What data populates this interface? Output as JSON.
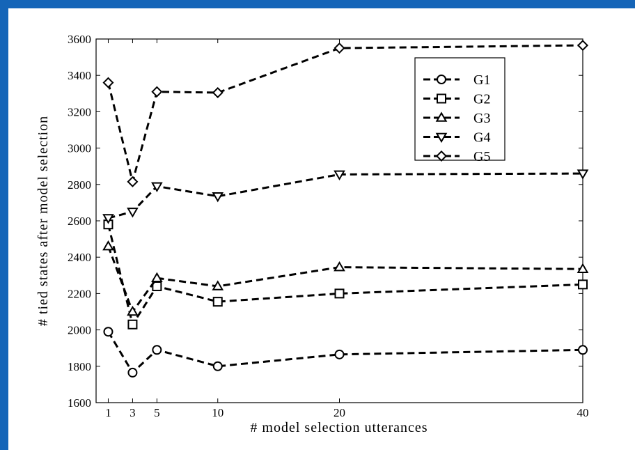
{
  "colors": {
    "border": "#1565b8",
    "background": "#ffffff",
    "ink": "#000000"
  },
  "chart_data": {
    "type": "line",
    "title": "",
    "xlabel": "# model selection utterances",
    "ylabel": "# tied states after model selection",
    "x": [
      1,
      3,
      5,
      10,
      20,
      40
    ],
    "xticks": [
      1,
      3,
      5,
      10,
      20,
      40
    ],
    "xlim": [
      0,
      40
    ],
    "ylim": [
      1600,
      3600
    ],
    "yticks": [
      1600,
      1800,
      2000,
      2200,
      2400,
      2600,
      2800,
      3000,
      3200,
      3400,
      3600
    ],
    "grid": false,
    "legend_position": "top-right",
    "series": [
      {
        "name": "G1",
        "marker": "circle",
        "values": [
          1990,
          1765,
          1890,
          1800,
          1865,
          1890
        ]
      },
      {
        "name": "G2",
        "marker": "square",
        "values": [
          2580,
          2030,
          2240,
          2155,
          2200,
          2250
        ]
      },
      {
        "name": "G3",
        "marker": "triangle-up",
        "values": [
          2460,
          2100,
          2285,
          2240,
          2345,
          2335
        ]
      },
      {
        "name": "G4",
        "marker": "triangle-down",
        "values": [
          2615,
          2650,
          2790,
          2735,
          2855,
          2860
        ]
      },
      {
        "name": "G5",
        "marker": "diamond",
        "values": [
          3360,
          2815,
          3310,
          3305,
          3550,
          3565
        ]
      }
    ]
  }
}
